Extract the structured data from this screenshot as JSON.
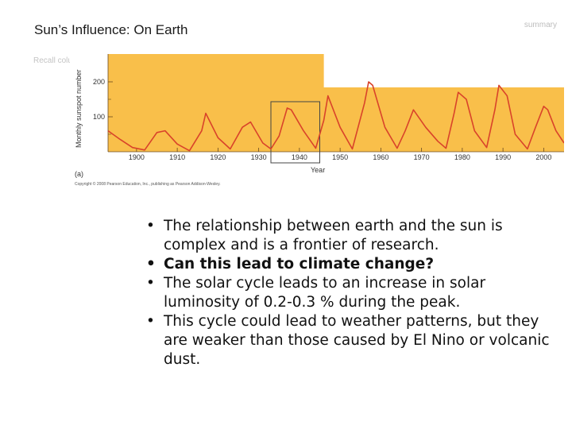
{
  "slide": {
    "title": "Sun’s Influence: On Earth",
    "corner_label": "summary",
    "recall_text": "Recall colu"
  },
  "figure": {
    "panel_label": "(a)",
    "copyright": "Copyright © 2008 Pearson Education, Inc., publishing as Pearson Addison-Wesley."
  },
  "chart_data": {
    "type": "line",
    "xlabel": "Year",
    "ylabel": "Monthly sunspot number",
    "x_ticks": [
      1900,
      1910,
      1920,
      1930,
      1940,
      1950,
      1960,
      1970,
      1980,
      1990,
      2000
    ],
    "y_ticks": [
      100,
      200
    ],
    "xlim": [
      1893,
      2005
    ],
    "ylim": [
      0,
      200
    ],
    "background_color": "#f9bf4a",
    "line_color": "#d9432a",
    "highlight_box": {
      "x_range": [
        1933,
        1945
      ]
    },
    "series": [
      {
        "x": [
          1893,
          1896,
          1899,
          1902,
          1905,
          1907,
          1910,
          1913,
          1916,
          1917,
          1920,
          1923,
          1926,
          1928,
          1931,
          1933,
          1935,
          1937,
          1938,
          1941,
          1944,
          1946,
          1947,
          1950,
          1953,
          1956,
          1957,
          1958,
          1961,
          1964,
          1966,
          1968,
          1971,
          1974,
          1976,
          1978,
          1979,
          1981,
          1983,
          1986,
          1988,
          1989,
          1991,
          1993,
          1996,
          1998,
          2000,
          2001,
          2003,
          2005
        ],
        "y": [
          60,
          35,
          12,
          5,
          55,
          60,
          22,
          3,
          60,
          110,
          40,
          8,
          70,
          85,
          25,
          8,
          45,
          125,
          120,
          60,
          10,
          90,
          160,
          70,
          8,
          140,
          200,
          190,
          70,
          10,
          60,
          120,
          70,
          30,
          10,
          110,
          170,
          150,
          60,
          12,
          120,
          190,
          160,
          50,
          8,
          70,
          130,
          120,
          60,
          25
        ]
      }
    ]
  },
  "bullets": [
    "The relationship between earth and the sun is complex and is a frontier of research.",
    "Can this lead to climate change?",
    "The solar cycle leads to an increase in solar luminosity of 0.2-0.3 %  during the peak.",
    "This cycle could lead to weather patterns, but they are weaker than those caused by El Nino or volcanic dust."
  ]
}
